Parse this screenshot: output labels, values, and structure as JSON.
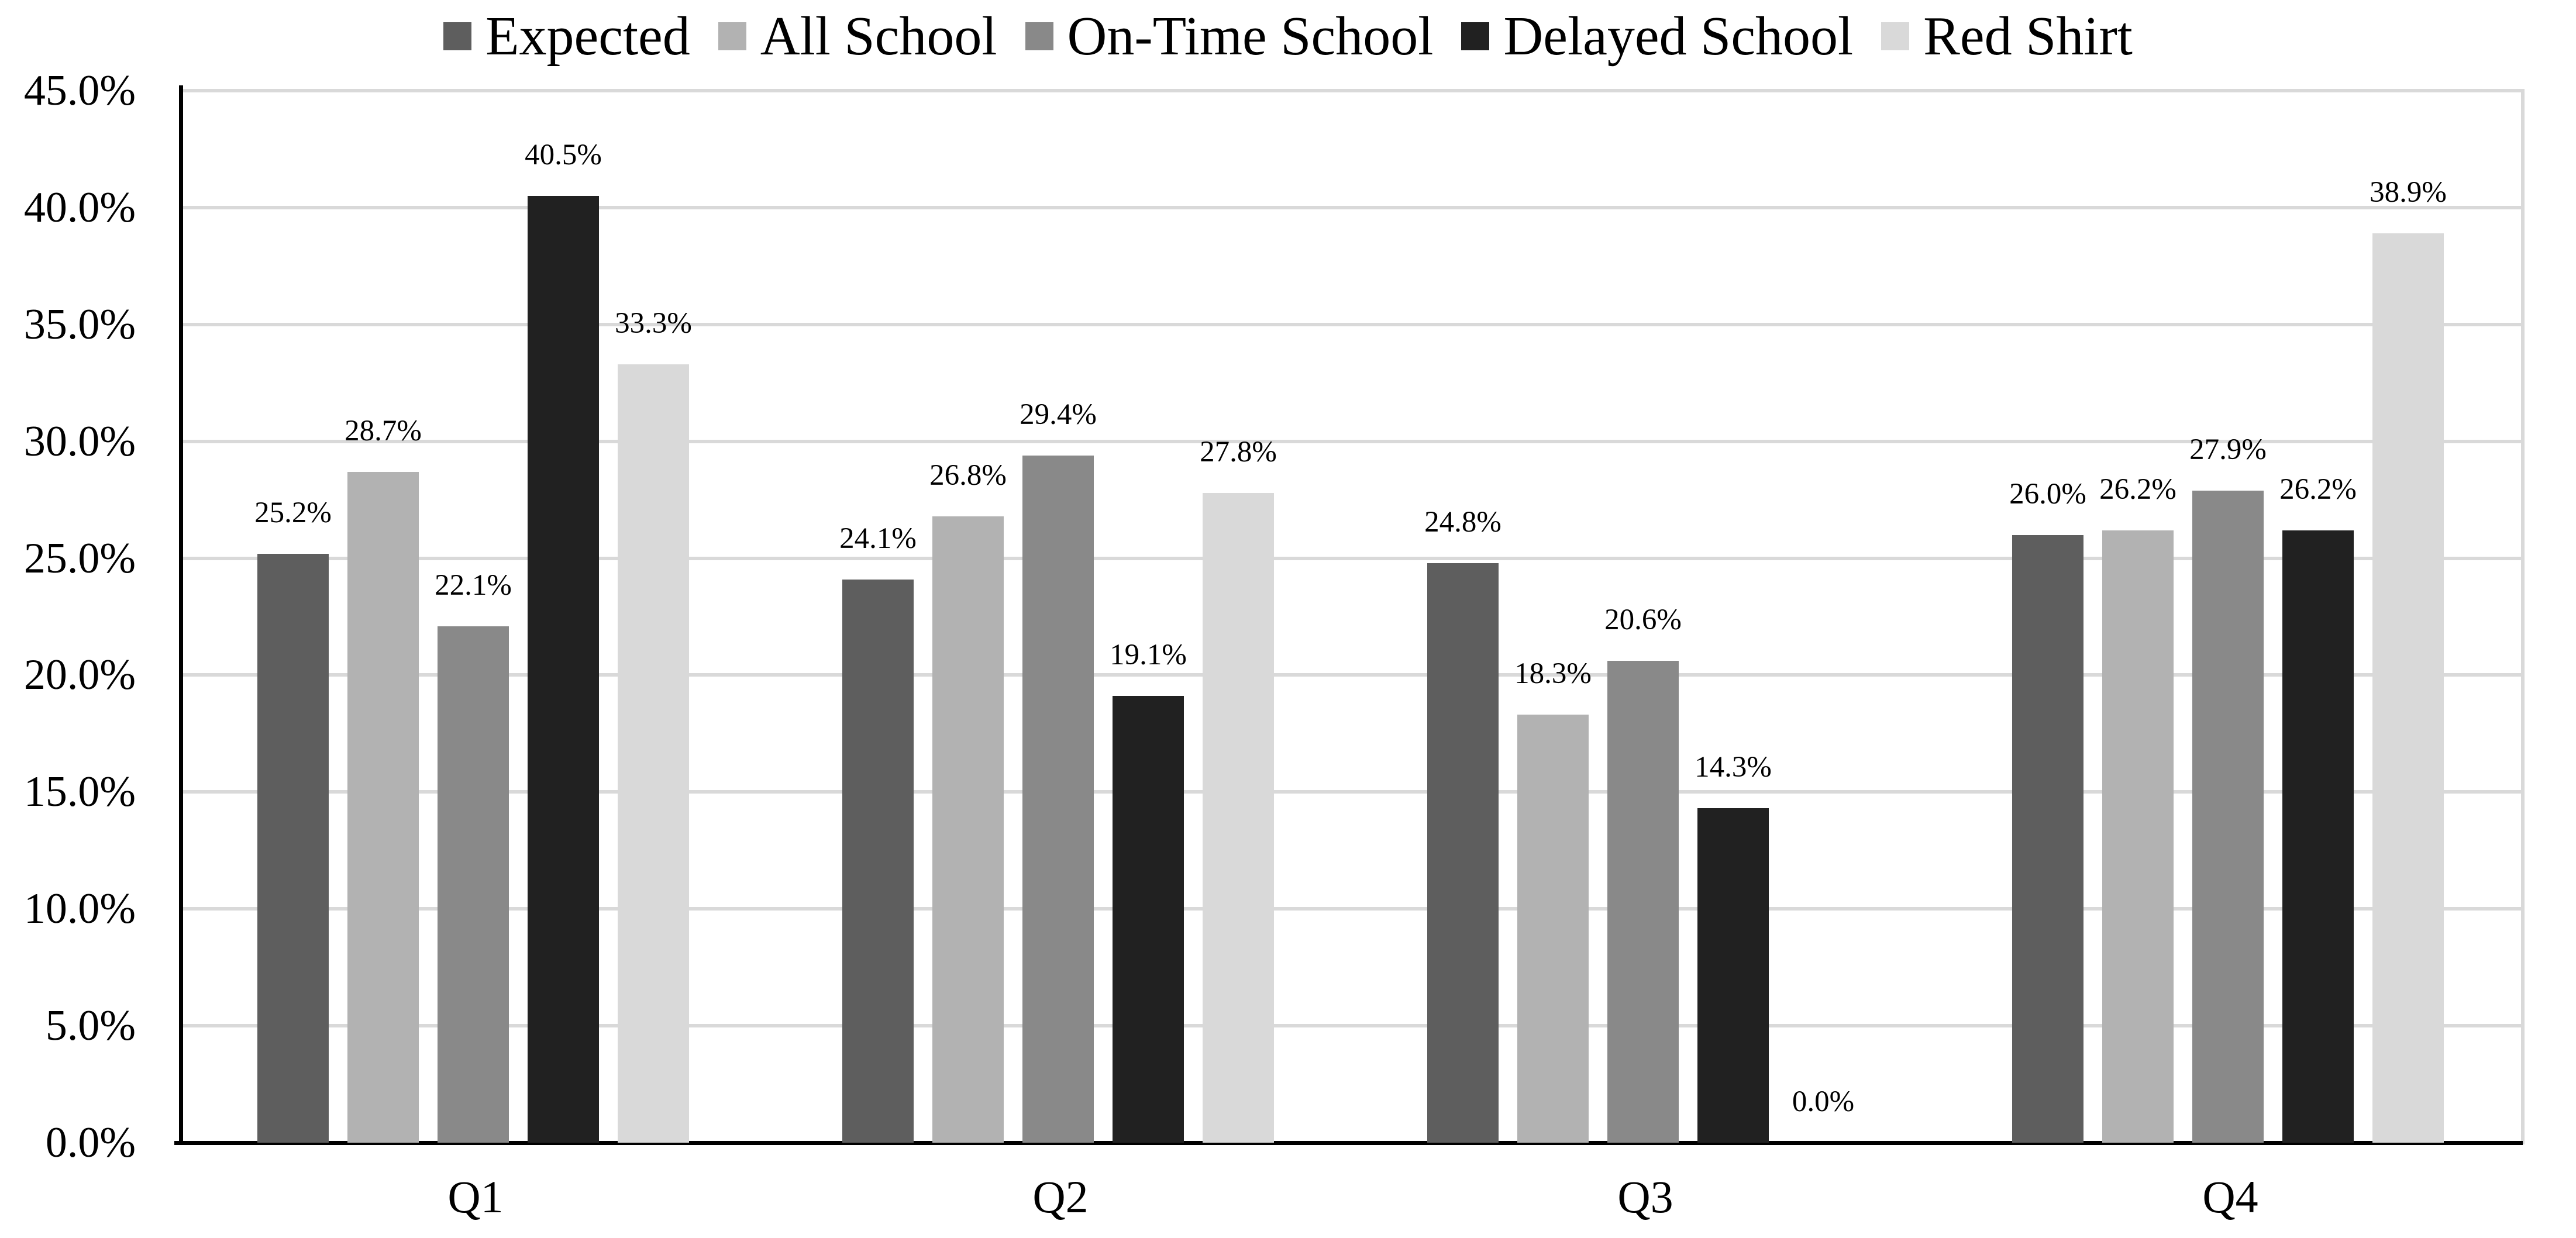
{
  "figure": {
    "background": "#ffffff",
    "text_color": "#000000",
    "axis_color": "#000000",
    "gridline_color": "#d9d9d9"
  },
  "legend": {
    "position": "top",
    "items": [
      {
        "label": "Expected",
        "color": "#5e5e5e"
      },
      {
        "label": "All School",
        "color": "#b2b2b2"
      },
      {
        "label": "On-Time School",
        "color": "#898989"
      },
      {
        "label": "Delayed School",
        "color": "#212121"
      },
      {
        "label": "Red Shirt",
        "color": "#d9d9d9"
      }
    ]
  },
  "chart_data": {
    "type": "bar",
    "title": "",
    "categories": [
      "Q1",
      "Q2",
      "Q3",
      "Q4"
    ],
    "series": [
      {
        "name": "Expected",
        "color": "#5e5e5e",
        "values": [
          25.2,
          24.1,
          24.8,
          26.0
        ],
        "labels": [
          "25.2%",
          "24.1%",
          "24.8%",
          "26.0%"
        ]
      },
      {
        "name": "All School",
        "color": "#b2b2b2",
        "values": [
          28.7,
          26.8,
          18.3,
          26.2
        ],
        "labels": [
          "28.7%",
          "26.8%",
          "18.3%",
          "26.2%"
        ]
      },
      {
        "name": "On-Time School",
        "color": "#898989",
        "values": [
          22.1,
          29.4,
          20.6,
          27.9
        ],
        "labels": [
          "22.1%",
          "29.4%",
          "20.6%",
          "27.9%"
        ]
      },
      {
        "name": "Delayed School",
        "color": "#212121",
        "values": [
          40.5,
          19.1,
          14.3,
          26.2
        ],
        "labels": [
          "40.5%",
          "19.1%",
          "14.3%",
          "26.2%"
        ]
      },
      {
        "name": "Red Shirt",
        "color": "#d9d9d9",
        "values": [
          33.3,
          27.8,
          0.0,
          38.9
        ],
        "labels": [
          "33.3%",
          "27.8%",
          "0.0%",
          "38.9%"
        ]
      }
    ],
    "y_axis": {
      "min": 0,
      "max": 45,
      "step": 5,
      "tick_labels": [
        "0.0%",
        "5.0%",
        "10.0%",
        "15.0%",
        "20.0%",
        "25.0%",
        "30.0%",
        "35.0%",
        "40.0%",
        "45.0%"
      ]
    },
    "x_axis": {
      "tick_labels": [
        "Q1",
        "Q2",
        "Q3",
        "Q4"
      ]
    },
    "grid": true,
    "legend_position": "top",
    "data_labels": "outside-end"
  }
}
